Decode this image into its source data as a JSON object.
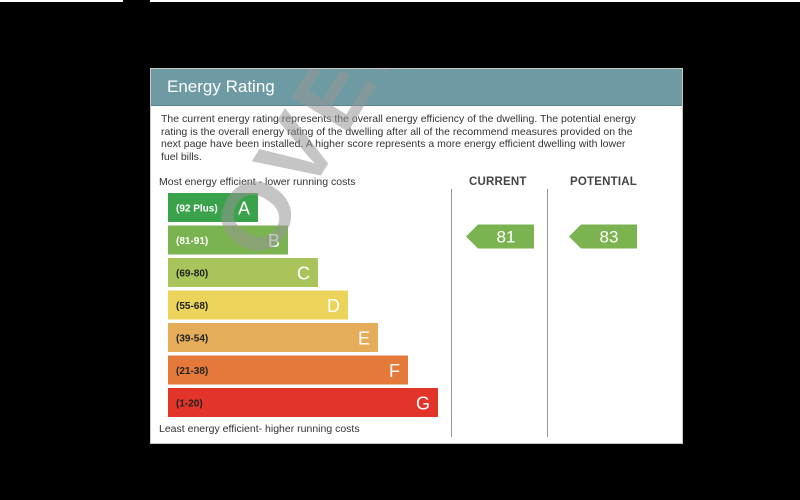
{
  "card": {
    "title": "Energy Rating",
    "intro": "The current energy rating represents the overall energy efficiency of the dwelling. The potential energy rating is the overall energy rating of the dwelling after all of the recommend measures provided on the next page have been installed. A higher score represents a more energy efficient dwelling with lower fuel bills.",
    "caption_top": "Most energy efficient - lower running costs",
    "caption_bottom": "Least energy efficient- higher running costs",
    "current_label": "CURRENT",
    "potential_label": "POTENTIAL",
    "watermark": "OVERVIEW"
  },
  "colors": {
    "header": "#6e9ba3",
    "band_A": "#3aa24a",
    "band_B": "#7ab34f",
    "band_C": "#a9c45b",
    "band_D": "#ecd45a",
    "band_E": "#e5ad5a",
    "band_F": "#e4793a",
    "band_G": "#e3342a",
    "arrow": "#7ab34f"
  },
  "chart_data": {
    "type": "bar",
    "categories": [
      "A",
      "B",
      "C",
      "D",
      "E",
      "F",
      "G"
    ],
    "ranges": [
      "(92 Plus)",
      "(81-91)",
      "(69-80)",
      "(55-68)",
      "(39-54)",
      "(21-38)",
      "(1-20)"
    ],
    "current": {
      "value": 81,
      "band": "B"
    },
    "potential": {
      "value": 83,
      "band": "B"
    }
  }
}
